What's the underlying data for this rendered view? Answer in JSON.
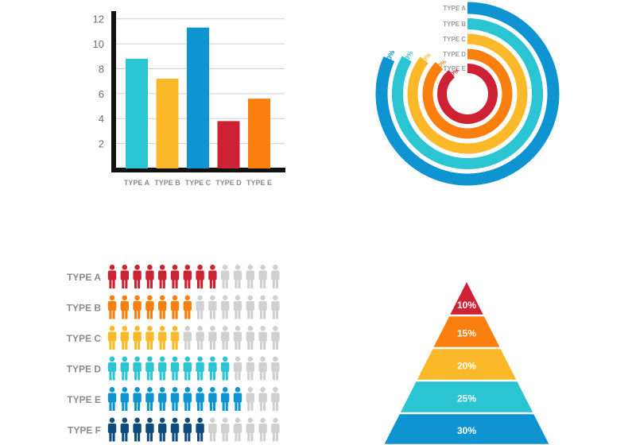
{
  "colors": {
    "cyan": "#2bc4d3",
    "yellow": "#fbb92a",
    "blue": "#0e94d1",
    "red": "#cc2234",
    "orange": "#fa7f0f",
    "navy": "#0f4c7d",
    "grey": "#d0d0d0"
  },
  "chart_data": [
    {
      "type": "bar",
      "categories": [
        "TYPE A",
        "TYPE B",
        "TYPE C",
        "TYPE D",
        "TYPE E"
      ],
      "values": [
        8.8,
        7.2,
        11.3,
        3.8,
        5.6
      ],
      "colors": [
        "#2bc4d3",
        "#fbb92a",
        "#0e94d1",
        "#cc2234",
        "#fa7f0f"
      ],
      "yticks": [
        "2",
        "4",
        "6",
        "8",
        "10",
        "12"
      ],
      "ylim": [
        0,
        13
      ],
      "grid": true
    },
    {
      "type": "radial-bar",
      "categories": [
        "TYPE A",
        "TYPE B",
        "TYPE C",
        "TYPE D",
        "TYPE E"
      ],
      "values": [
        100,
        100,
        100,
        100,
        100
      ],
      "value_labels": [
        "100%",
        "100%",
        "100%",
        "100%",
        "100%"
      ],
      "colors": [
        "#0e94d1",
        "#2bc4d3",
        "#fbb92a",
        "#fa7f0f",
        "#cc2234"
      ]
    },
    {
      "type": "pictogram",
      "categories": [
        "TYPE A",
        "TYPE B",
        "TYPE C",
        "TYPE D",
        "TYPE E",
        "TYPE F"
      ],
      "values": [
        9,
        7,
        6,
        10,
        11,
        8
      ],
      "total_icons": 14,
      "colors": [
        "#cc2234",
        "#fa7f0f",
        "#fbb92a",
        "#2bc4d3",
        "#0e94d1",
        "#0f4c7d"
      ],
      "inactive_color": "#d0d0d0"
    },
    {
      "type": "pyramid",
      "values": [
        10,
        15,
        20,
        25,
        30
      ],
      "labels": [
        "10%",
        "15%",
        "20%",
        "25%",
        "30%"
      ],
      "colors": [
        "#cc2234",
        "#fa7f0f",
        "#fbb92a",
        "#2bc4d3",
        "#0e94d1"
      ]
    }
  ]
}
